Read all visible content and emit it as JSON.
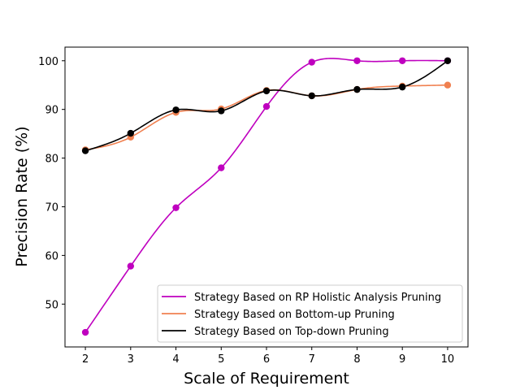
{
  "chart_data": {
    "type": "line",
    "xlabel": "Scale of Requirement",
    "ylabel": "Precision Rate (%)",
    "x": [
      2,
      3,
      4,
      5,
      6,
      7,
      8,
      9,
      10
    ],
    "xlim": [
      1.55,
      10.45
    ],
    "ylim": [
      41.2,
      102.8
    ],
    "xticks": [
      2,
      3,
      4,
      5,
      6,
      7,
      8,
      9,
      10
    ],
    "yticks": [
      50,
      60,
      70,
      80,
      90,
      100
    ],
    "grid": false,
    "legend_position": "lower-right",
    "smoothed": true,
    "series": [
      {
        "name": "Strategy Based on RP Holistic Analysis Pruning",
        "color": "#bf00bf",
        "values": [
          44.2,
          57.8,
          69.8,
          78.0,
          90.6,
          99.7,
          100.0,
          100.0,
          100.0
        ]
      },
      {
        "name": "Strategy Based on Bottom-up Pruning",
        "color": "#f08050",
        "values": [
          81.7,
          84.3,
          89.4,
          90.1,
          93.9,
          92.8,
          94.1,
          94.8,
          95.0
        ]
      },
      {
        "name": "Strategy Based on Top-down Pruning",
        "color": "#000000",
        "values": [
          81.5,
          85.1,
          89.9,
          89.7,
          93.8,
          92.8,
          94.1,
          94.6,
          100.0
        ]
      }
    ]
  }
}
